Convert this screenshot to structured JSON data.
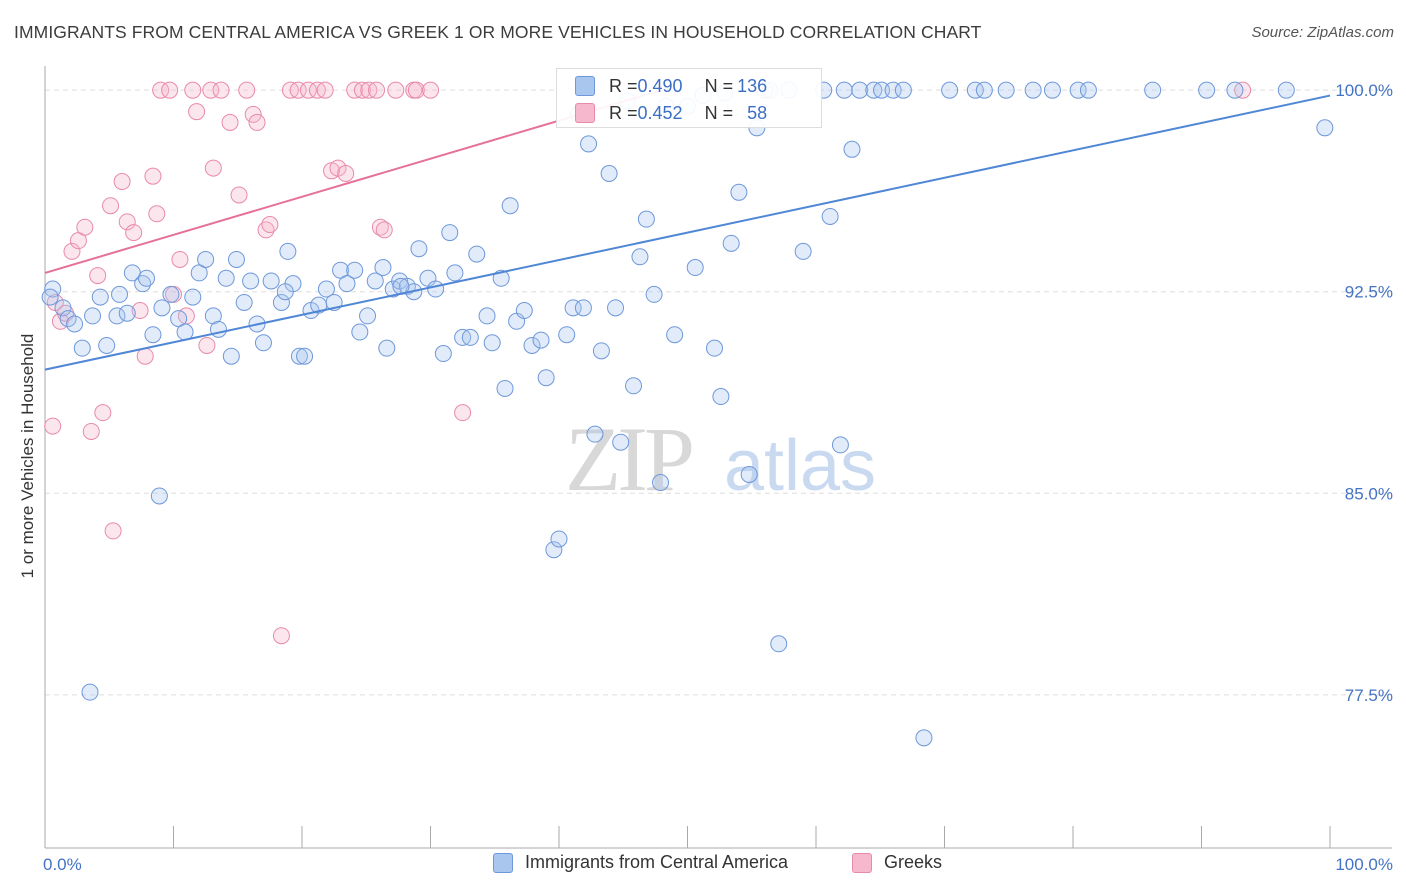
{
  "title": "IMMIGRANTS FROM CENTRAL AMERICA VS GREEK 1 OR MORE VEHICLES IN HOUSEHOLD CORRELATION CHART",
  "source": "Source: ZipAtlas.com",
  "watermark": {
    "zip": "ZIP",
    "atlas": "atlas"
  },
  "colors": {
    "blue": "#4f87d6",
    "blue_fill": "#a9c6ef",
    "pink": "#e5709a",
    "pink_fill": "#f5b8cc",
    "grid": "#dddddd",
    "tick_text": "#4473c4"
  },
  "stats": {
    "rows": [
      {
        "r_label": "R = ",
        "r_value": "0.490",
        "n_label": "N = ",
        "n_value": "136"
      },
      {
        "r_label": "R = ",
        "r_value": "0.452",
        "n_label": "N = ",
        "n_value": "58"
      }
    ]
  },
  "legend": {
    "items": [
      "Immigrants from Central America",
      "Greeks"
    ]
  },
  "chart_data": {
    "type": "scatter",
    "xlabel": "",
    "ylabel": "1 or more Vehicles in Household",
    "xlim": [
      0,
      100
    ],
    "ylim": [
      71.8,
      100.9
    ],
    "x_tick_labels": [
      "0.0%",
      "100.0%"
    ],
    "y_ticks": [
      77.5,
      85.0,
      92.5,
      100.0
    ],
    "y_tick_labels": [
      "77.5%",
      "85.0%",
      "92.5%",
      "100.0%"
    ],
    "grid": "horizontal dashed",
    "legend_position": "bottom",
    "series": [
      {
        "name": "Immigrants from Central America",
        "color": "#4f87d6",
        "trend": {
          "x": [
            0,
            100
          ],
          "y": [
            89.6,
            99.8
          ]
        },
        "points": [
          [
            0.6,
            92.6
          ],
          [
            1.4,
            91.9
          ],
          [
            1.8,
            91.5
          ],
          [
            2.3,
            91.3
          ],
          [
            2.9,
            90.4
          ],
          [
            3.7,
            91.6
          ],
          [
            4.3,
            92.3
          ],
          [
            4.8,
            90.5
          ],
          [
            5.6,
            91.6
          ],
          [
            5.8,
            92.4
          ],
          [
            6.4,
            91.7
          ],
          [
            6.8,
            93.2
          ],
          [
            7.6,
            92.8
          ],
          [
            7.9,
            93.0
          ],
          [
            8.4,
            90.9
          ],
          [
            9.1,
            91.9
          ],
          [
            9.8,
            92.4
          ],
          [
            10.4,
            91.5
          ],
          [
            10.9,
            91.0
          ],
          [
            11.5,
            92.3
          ],
          [
            12.0,
            93.2
          ],
          [
            12.5,
            93.7
          ],
          [
            13.1,
            91.6
          ],
          [
            13.5,
            91.1
          ],
          [
            14.1,
            93.0
          ],
          [
            14.5,
            90.1
          ],
          [
            14.9,
            93.7
          ],
          [
            15.5,
            92.1
          ],
          [
            16.0,
            92.9
          ],
          [
            16.5,
            91.3
          ],
          [
            17.0,
            90.6
          ],
          [
            17.6,
            92.9
          ],
          [
            18.4,
            92.1
          ],
          [
            18.9,
            94.0
          ],
          [
            19.3,
            92.8
          ],
          [
            19.8,
            90.1
          ],
          [
            20.2,
            90.1
          ],
          [
            20.7,
            91.8
          ],
          [
            21.3,
            92.0
          ],
          [
            21.9,
            92.6
          ],
          [
            22.5,
            92.1
          ],
          [
            23.0,
            93.3
          ],
          [
            23.5,
            92.8
          ],
          [
            24.1,
            93.3
          ],
          [
            24.5,
            91.0
          ],
          [
            25.1,
            91.6
          ],
          [
            25.7,
            92.9
          ],
          [
            26.3,
            93.4
          ],
          [
            26.6,
            90.4
          ],
          [
            27.1,
            92.6
          ],
          [
            27.6,
            92.9
          ],
          [
            28.2,
            92.7
          ],
          [
            28.7,
            92.5
          ],
          [
            29.1,
            94.1
          ],
          [
            29.8,
            93.0
          ],
          [
            30.4,
            92.6
          ],
          [
            31.0,
            90.2
          ],
          [
            31.5,
            94.7
          ],
          [
            31.9,
            93.2
          ],
          [
            32.5,
            90.8
          ],
          [
            33.1,
            90.8
          ],
          [
            33.6,
            93.9
          ],
          [
            34.4,
            91.6
          ],
          [
            34.8,
            90.6
          ],
          [
            35.5,
            93.0
          ],
          [
            35.8,
            88.9
          ],
          [
            36.2,
            95.7
          ],
          [
            36.7,
            91.4
          ],
          [
            37.3,
            91.8
          ],
          [
            37.9,
            90.5
          ],
          [
            38.6,
            90.7
          ],
          [
            39.0,
            89.3
          ],
          [
            39.6,
            82.9
          ],
          [
            40.0,
            83.3
          ],
          [
            40.6,
            90.9
          ],
          [
            41.1,
            91.9
          ],
          [
            41.5,
            99.1
          ],
          [
            41.9,
            91.9
          ],
          [
            42.3,
            98.0
          ],
          [
            42.8,
            87.2
          ],
          [
            43.3,
            90.3
          ],
          [
            43.9,
            96.9
          ],
          [
            44.4,
            91.9
          ],
          [
            44.8,
            86.9
          ],
          [
            45.3,
            99.6
          ],
          [
            45.8,
            89.0
          ],
          [
            46.3,
            93.8
          ],
          [
            46.8,
            95.2
          ],
          [
            47.4,
            92.4
          ],
          [
            47.9,
            85.4
          ],
          [
            48.3,
            99.4
          ],
          [
            49.0,
            90.9
          ],
          [
            50.0,
            99.4
          ],
          [
            50.6,
            93.4
          ],
          [
            51.2,
            99.8
          ],
          [
            52.1,
            90.4
          ],
          [
            52.6,
            88.6
          ],
          [
            52.9,
            99.9
          ],
          [
            53.4,
            94.3
          ],
          [
            54.0,
            96.2
          ],
          [
            54.8,
            85.7
          ],
          [
            55.4,
            98.6
          ],
          [
            56.0,
            100.0
          ],
          [
            57.1,
            79.4
          ],
          [
            57.9,
            100.0
          ],
          [
            59.0,
            94.0
          ],
          [
            60.6,
            100.0
          ],
          [
            61.1,
            95.3
          ],
          [
            61.9,
            86.8
          ],
          [
            62.8,
            97.8
          ],
          [
            63.4,
            100.0
          ],
          [
            64.5,
            100.0
          ],
          [
            65.1,
            100.0
          ],
          [
            66.0,
            100.0
          ],
          [
            66.8,
            100.0
          ],
          [
            68.4,
            75.9
          ],
          [
            70.4,
            100.0
          ],
          [
            72.4,
            100.0
          ],
          [
            73.1,
            100.0
          ],
          [
            74.8,
            100.0
          ],
          [
            76.9,
            100.0
          ],
          [
            78.4,
            100.0
          ],
          [
            80.4,
            100.0
          ],
          [
            81.2,
            100.0
          ],
          [
            86.2,
            100.0
          ],
          [
            90.4,
            100.0
          ],
          [
            92.6,
            100.0
          ],
          [
            96.6,
            100.0
          ],
          [
            99.6,
            98.6
          ],
          [
            3.5,
            77.6
          ],
          [
            8.9,
            84.9
          ],
          [
            0.4,
            92.3
          ],
          [
            27.7,
            92.7
          ],
          [
            18.7,
            92.5
          ],
          [
            56.4,
            100.0
          ],
          [
            62.2,
            100.0
          ]
        ]
      },
      {
        "name": "Greeks",
        "color": "#e5709a",
        "trend": {
          "x": [
            0,
            48
          ],
          "y": [
            93.2,
            100.0
          ]
        },
        "points": [
          [
            0.6,
            87.5
          ],
          [
            0.8,
            92.1
          ],
          [
            1.2,
            91.4
          ],
          [
            1.6,
            91.7
          ],
          [
            2.1,
            94.0
          ],
          [
            2.6,
            94.4
          ],
          [
            3.1,
            94.9
          ],
          [
            3.6,
            87.3
          ],
          [
            4.1,
            93.1
          ],
          [
            4.5,
            88.0
          ],
          [
            5.1,
            95.7
          ],
          [
            5.3,
            83.6
          ],
          [
            6.0,
            96.6
          ],
          [
            6.4,
            95.1
          ],
          [
            6.9,
            94.7
          ],
          [
            7.4,
            91.8
          ],
          [
            7.8,
            90.1
          ],
          [
            8.4,
            96.8
          ],
          [
            8.7,
            95.4
          ],
          [
            9.0,
            100.0
          ],
          [
            9.7,
            100.0
          ],
          [
            10.0,
            92.4
          ],
          [
            10.5,
            93.7
          ],
          [
            11.0,
            91.6
          ],
          [
            11.5,
            100.0
          ],
          [
            11.8,
            99.2
          ],
          [
            12.6,
            90.5
          ],
          [
            13.1,
            97.1
          ],
          [
            12.9,
            100.0
          ],
          [
            13.7,
            100.0
          ],
          [
            14.4,
            98.8
          ],
          [
            15.1,
            96.1
          ],
          [
            15.7,
            100.0
          ],
          [
            16.2,
            99.1
          ],
          [
            16.5,
            98.8
          ],
          [
            17.2,
            94.8
          ],
          [
            17.5,
            95.0
          ],
          [
            18.4,
            79.7
          ],
          [
            19.1,
            100.0
          ],
          [
            19.7,
            100.0
          ],
          [
            20.5,
            100.0
          ],
          [
            21.2,
            100.0
          ],
          [
            21.8,
            100.0
          ],
          [
            22.3,
            97.0
          ],
          [
            22.8,
            97.1
          ],
          [
            23.4,
            96.9
          ],
          [
            24.1,
            100.0
          ],
          [
            24.7,
            100.0
          ],
          [
            25.2,
            100.0
          ],
          [
            25.8,
            100.0
          ],
          [
            26.1,
            94.9
          ],
          [
            26.4,
            94.8
          ],
          [
            27.3,
            100.0
          ],
          [
            28.7,
            100.0
          ],
          [
            28.9,
            100.0
          ],
          [
            30.0,
            100.0
          ],
          [
            32.5,
            88.0
          ],
          [
            93.2,
            100.0
          ]
        ]
      }
    ]
  }
}
